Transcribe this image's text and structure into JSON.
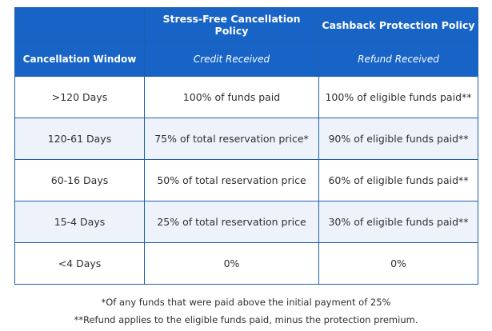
{
  "header": {
    "policy1_title": "Stress-Free Cancellation Policy",
    "policy2_title": "Cashback Protection Policy",
    "window_label": "Cancellation Window",
    "policy1_sub": "Credit Received",
    "policy2_sub": "Refund Received"
  },
  "rows": [
    {
      "window": ">120 Days",
      "credit": "100% of funds paid",
      "refund": "100% of eligible funds paid**"
    },
    {
      "window": "120-61 Days",
      "credit": "75% of total reservation price*",
      "refund": "90% of eligible funds paid**"
    },
    {
      "window": "60-16 Days",
      "credit": "50% of total reservation price",
      "refund": "60% of eligible funds paid**"
    },
    {
      "window": "15-4 Days",
      "credit": "25% of total reservation price",
      "refund": "30% of eligible funds paid**"
    },
    {
      "window": "<4 Days",
      "credit": "0%",
      "refund": "0%"
    }
  ],
  "footnotes": {
    "note1": "*Of any funds that were paid above the initial payment of 25%",
    "note2": "**Refund applies to the eligible funds paid, minus the protection premium."
  },
  "colors": {
    "header_bg": "#1763c6",
    "border": "#1d5fae",
    "alt_row_bg": "#eef3fb"
  }
}
